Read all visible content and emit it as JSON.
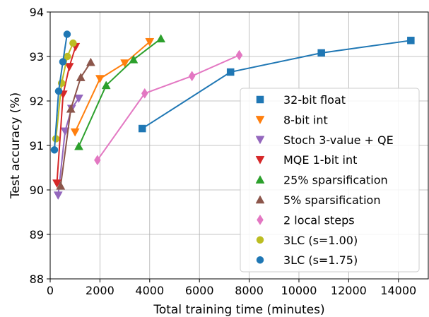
{
  "chart_data": {
    "type": "line",
    "title": "",
    "xlabel": "Total training time (minutes)",
    "ylabel": "Test accuracy (%)",
    "xlim": [
      0,
      15200
    ],
    "ylim": [
      88,
      94
    ],
    "xticks": [
      0,
      2000,
      4000,
      6000,
      8000,
      10000,
      12000,
      14000
    ],
    "yticks": [
      88,
      89,
      90,
      91,
      92,
      93,
      94
    ],
    "grid": true,
    "legend_position": "lower-right",
    "series": [
      {
        "name": "32-bit float",
        "color": "#1f77b4",
        "marker": "square",
        "points": [
          [
            3700,
            91.38
          ],
          [
            7250,
            92.65
          ],
          [
            10900,
            93.08
          ],
          [
            14500,
            93.36
          ]
        ]
      },
      {
        "name": "8-bit int",
        "color": "#ff7f0e",
        "marker": "triangle-down",
        "points": [
          [
            1000,
            91.3
          ],
          [
            2000,
            92.5
          ],
          [
            3000,
            92.85
          ],
          [
            4000,
            93.33
          ]
        ]
      },
      {
        "name": "Stoch 3-value + QE",
        "color": "#9467bd",
        "marker": "triangle-down",
        "points": [
          [
            320,
            89.88
          ],
          [
            600,
            91.32
          ],
          [
            860,
            91.83
          ],
          [
            1150,
            92.06
          ]
        ]
      },
      {
        "name": "MQE 1-bit int",
        "color": "#d62728",
        "marker": "triangle-down",
        "points": [
          [
            270,
            90.15
          ],
          [
            520,
            92.15
          ],
          [
            770,
            92.77
          ],
          [
            1020,
            93.22
          ]
        ]
      },
      {
        "name": "25% sparsification",
        "color": "#2ca02c",
        "marker": "triangle-up",
        "points": [
          [
            1150,
            90.98
          ],
          [
            2250,
            92.35
          ],
          [
            3350,
            92.93
          ],
          [
            4450,
            93.4
          ]
        ]
      },
      {
        "name": "5% sparsification",
        "color": "#8c564b",
        "marker": "triangle-up",
        "points": [
          [
            420,
            90.09
          ],
          [
            830,
            91.82
          ],
          [
            1230,
            92.53
          ],
          [
            1630,
            92.87
          ]
        ]
      },
      {
        "name": "2 local steps",
        "color": "#e377c2",
        "marker": "diamond",
        "points": [
          [
            1900,
            90.67
          ],
          [
            3800,
            92.17
          ],
          [
            5700,
            92.56
          ],
          [
            7600,
            93.03
          ]
        ]
      },
      {
        "name": "3LC (s=1.00)",
        "color": "#bcbd22",
        "marker": "circle",
        "points": [
          [
            230,
            91.15
          ],
          [
            460,
            92.4
          ],
          [
            690,
            93.0
          ],
          [
            920,
            93.3
          ]
        ]
      },
      {
        "name": "3LC (s=1.75)",
        "color": "#1f77b4",
        "marker": "circle",
        "points": [
          [
            170,
            90.9
          ],
          [
            340,
            92.22
          ],
          [
            510,
            92.88
          ],
          [
            680,
            93.5
          ]
        ]
      }
    ]
  }
}
